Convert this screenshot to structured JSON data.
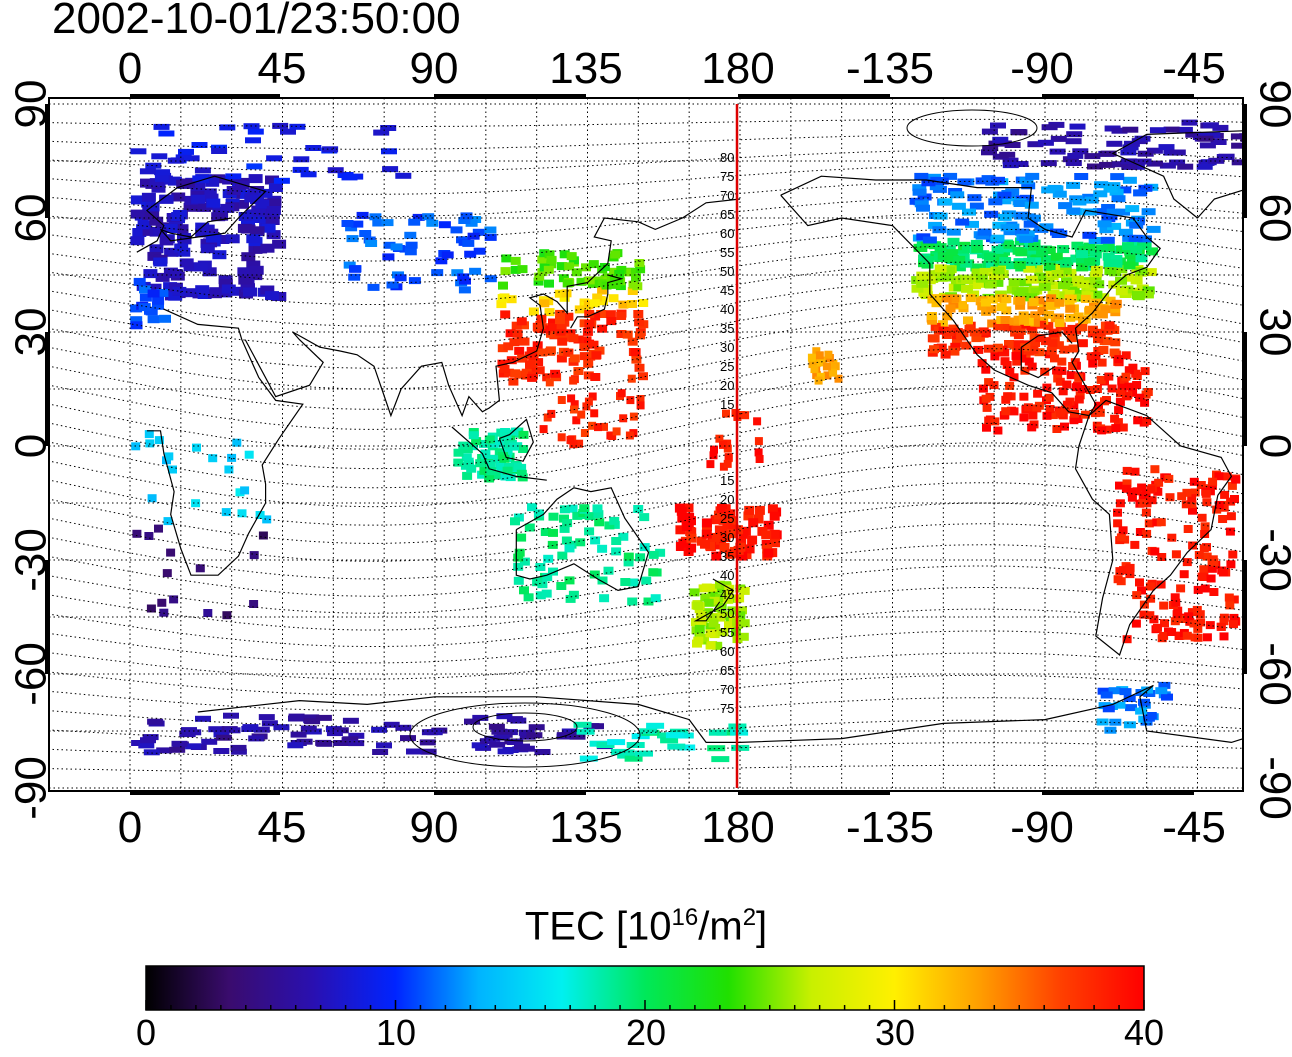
{
  "title": "2002-10-01/23:50:00",
  "lon_tick_labels": [
    "0",
    "45",
    "90",
    "135",
    "180",
    "-135",
    "-90",
    "-45"
  ],
  "lat_tick_labels": [
    "90",
    "60",
    "30",
    "0",
    "-30",
    "-60",
    "-90"
  ],
  "meridian_marker_labels_north": [
    "80",
    "75",
    "70",
    "65",
    "60",
    "55",
    "50",
    "45",
    "40",
    "35",
    "30",
    "25",
    "20",
    "15"
  ],
  "meridian_marker_labels_south": [
    "15",
    "20",
    "25",
    "30",
    "35",
    "40",
    "45",
    "50",
    "55",
    "60",
    "65",
    "70",
    "75"
  ],
  "colorbar": {
    "label_main": "TEC  [10",
    "label_exp1": "16",
    "label_mid": "/m",
    "label_exp2": "2",
    "label_end": "]",
    "ticks": [
      "0",
      "10",
      "20",
      "30",
      "40"
    ],
    "min": 0,
    "max": 40,
    "colormap": [
      "#000000",
      "#3a0c6e",
      "#2a10b0",
      "#0024ff",
      "#00b4ff",
      "#00f0f0",
      "#00e85a",
      "#20e000",
      "#c8f000",
      "#fff000",
      "#ffa000",
      "#ff4000",
      "#ff0000"
    ]
  },
  "colors": {
    "marker_line": "#dd0000",
    "grid": "#000000"
  }
}
